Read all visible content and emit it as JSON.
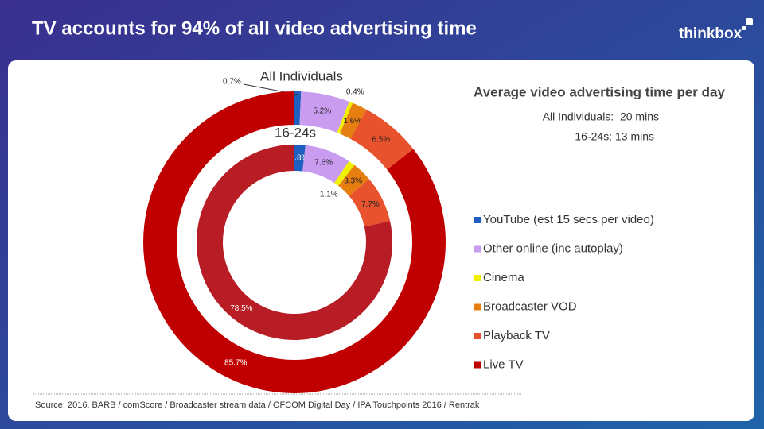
{
  "chart_data": {
    "type": "donut",
    "title": "TV accounts for 94% of all video advertising time",
    "logo": "thinkbox",
    "categories": [
      "YouTube (est 15 secs per video)",
      "Other online (inc autoplay)",
      "Cinema",
      "Broadcaster VOD",
      "Playback TV",
      "Live TV"
    ],
    "series": [
      {
        "name": "All Individuals",
        "values": [
          0.7,
          5.2,
          0.4,
          1.6,
          6.5,
          85.7
        ],
        "value_labels": [
          "0.7%",
          "5.2%",
          "0.4%",
          "1.6%",
          "6.5%",
          "85.7%"
        ],
        "colors": [
          "#1f5fbf",
          "#c99cf0",
          "#f0f000",
          "#e67e10",
          "#e8522c",
          "#c00000"
        ]
      },
      {
        "name": "16-24s",
        "values": [
          1.8,
          7.6,
          1.1,
          3.3,
          7.7,
          78.5
        ],
        "value_labels": [
          "1.8%",
          "7.6%",
          "1.1%",
          "3.3%",
          "7.7%",
          "78.5%"
        ],
        "colors": [
          "#1f5fbf",
          "#c99cf0",
          "#f0f000",
          "#e67e10",
          "#e8522c",
          "#b81c24"
        ]
      }
    ],
    "panel": {
      "heading": "Average video advertising time per day",
      "lines": [
        "All Individuals:  20 mins",
        "16-24s: 13 mins"
      ]
    },
    "source": "Source: 2016, BARB / comScore / Broadcaster stream data / OFCOM Digital Day / IPA Touchpoints 2016 / Rentrak"
  }
}
